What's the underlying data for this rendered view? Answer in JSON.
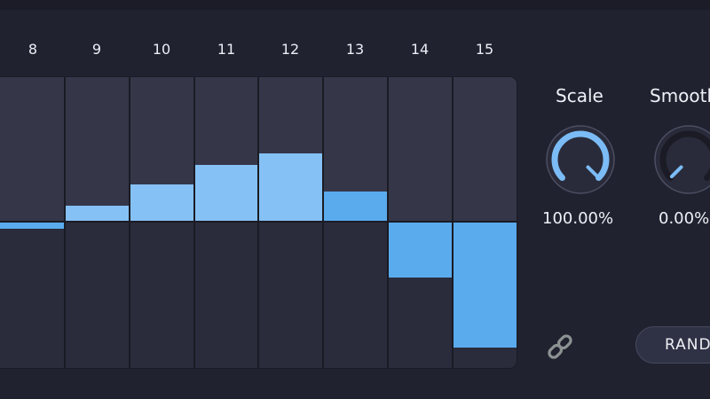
{
  "sequencer": {
    "steps": [
      {
        "label": "8",
        "value": -0.05
      },
      {
        "label": "9",
        "value": 0.11
      },
      {
        "label": "10",
        "value": 0.26
      },
      {
        "label": "11",
        "value": 0.39
      },
      {
        "label": "12",
        "value": 0.47
      },
      {
        "label": "13",
        "value": 0.21
      },
      {
        "label": "14",
        "value": -0.38
      },
      {
        "label": "15",
        "value": -0.85
      }
    ],
    "colors": {
      "panel_bg": "#2d2f40",
      "column_light": "#353749",
      "column_dark": "#2a2b3b",
      "bar_light": "#85c1f5",
      "bar_mid": "#5aabee",
      "divider": "#1a1b24"
    }
  },
  "knobs": {
    "scale": {
      "label": "Scale",
      "value_text": "100.00%",
      "level": 1.0
    },
    "smooth": {
      "label": "Smooth",
      "value_text": "0.00%",
      "level": 0.0
    }
  },
  "link": {
    "icon": "link-icon"
  },
  "random_button": {
    "label": "RANDOM"
  }
}
